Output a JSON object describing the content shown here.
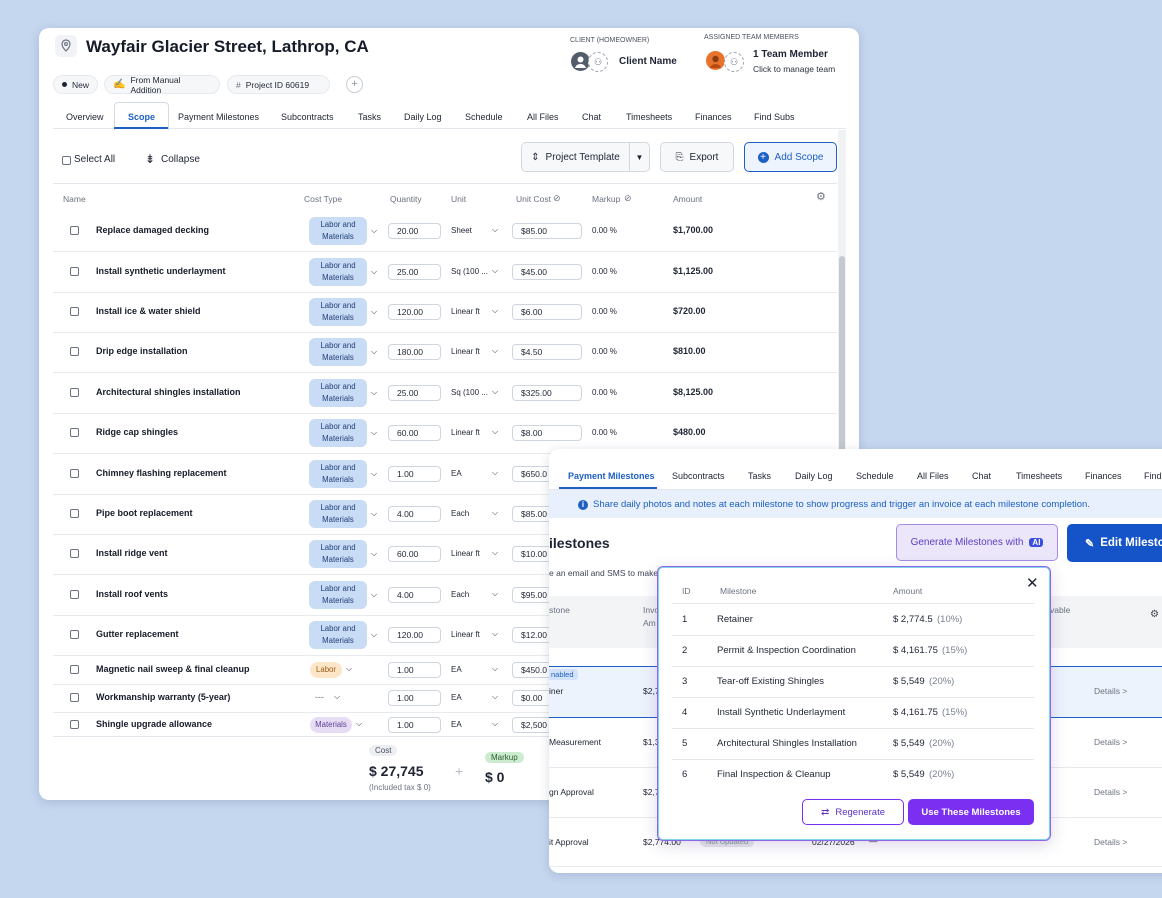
{
  "project": {
    "title": "Wayfair Glacier Street, Lathrop, CA",
    "status": "New",
    "source": "From Manual Addition",
    "project_id": "Project ID 60619",
    "client_label": "CLIENT (HOMEOWNER)",
    "client_name": "Client Name",
    "team_label": "ASSIGNED TEAM MEMBERS",
    "team_count": "1 Team Member",
    "team_hint": "Click to manage team"
  },
  "tabs": [
    "Overview",
    "Scope",
    "Payment Milestones",
    "Subcontracts",
    "Tasks",
    "Daily Log",
    "Schedule",
    "All Files",
    "Chat",
    "Timesheets",
    "Finances",
    "Find Subs"
  ],
  "toolbar": {
    "select_all": "Select All",
    "collapse": "Collapse",
    "template": "Project Template",
    "export": "Export",
    "add_scope": "Add Scope"
  },
  "columns": [
    "Name",
    "Cost Type",
    "Quantity",
    "Unit",
    "Unit Cost",
    "Markup",
    "Amount"
  ],
  "scope_items": [
    {
      "name": "Replace damaged decking",
      "cost_type": "Labor and Materials",
      "qty": "20.00",
      "unit": "Sheet",
      "unit_cost": "$85.00",
      "markup": "0.00 %",
      "amount": "$1,700.00"
    },
    {
      "name": "Install synthetic underlayment",
      "cost_type": "Labor and Materials",
      "qty": "25.00",
      "unit": "Sq (100 ...",
      "unit_cost": "$45.00",
      "markup": "0.00 %",
      "amount": "$1,125.00"
    },
    {
      "name": "Install ice & water shield",
      "cost_type": "Labor and Materials",
      "qty": "120.00",
      "unit": "Linear ft",
      "unit_cost": "$6.00",
      "markup": "0.00 %",
      "amount": "$720.00"
    },
    {
      "name": "Drip edge installation",
      "cost_type": "Labor and Materials",
      "qty": "180.00",
      "unit": "Linear ft",
      "unit_cost": "$4.50",
      "markup": "0.00 %",
      "amount": "$810.00"
    },
    {
      "name": "Architectural shingles installation",
      "cost_type": "Labor and Materials",
      "qty": "25.00",
      "unit": "Sq (100 ...",
      "unit_cost": "$325.00",
      "markup": "0.00 %",
      "amount": "$8,125.00"
    },
    {
      "name": "Ridge cap shingles",
      "cost_type": "Labor and Materials",
      "qty": "60.00",
      "unit": "Linear ft",
      "unit_cost": "$8.00",
      "markup": "0.00 %",
      "amount": "$480.00"
    },
    {
      "name": "Chimney flashing replacement",
      "cost_type": "Labor and Materials",
      "qty": "1.00",
      "unit": "EA",
      "unit_cost": "$650.0",
      "markup": "",
      "amount": ""
    },
    {
      "name": "Pipe boot replacement",
      "cost_type": "Labor and Materials",
      "qty": "4.00",
      "unit": "Each",
      "unit_cost": "$85.00",
      "markup": "",
      "amount": ""
    },
    {
      "name": "Install ridge vent",
      "cost_type": "Labor and Materials",
      "qty": "60.00",
      "unit": "Linear ft",
      "unit_cost": "$10.00",
      "markup": "",
      "amount": ""
    },
    {
      "name": "Install roof vents",
      "cost_type": "Labor and Materials",
      "qty": "4.00",
      "unit": "Each",
      "unit_cost": "$95.00",
      "markup": "",
      "amount": ""
    },
    {
      "name": "Gutter replacement",
      "cost_type": "Labor and Materials",
      "qty": "120.00",
      "unit": "Linear ft",
      "unit_cost": "$12.00",
      "markup": "",
      "amount": ""
    },
    {
      "name": "Magnetic nail sweep & final cleanup",
      "cost_type": "Labor",
      "qty": "1.00",
      "unit": "EA",
      "unit_cost": "$450.0",
      "markup": "",
      "amount": ""
    },
    {
      "name": "Workmanship warranty (5-year)",
      "cost_type": "---",
      "qty": "1.00",
      "unit": "EA",
      "unit_cost": "$0.00",
      "markup": "",
      "amount": ""
    },
    {
      "name": "Shingle upgrade allowance",
      "cost_type": "Materials",
      "qty": "1.00",
      "unit": "EA",
      "unit_cost": "$2,500",
      "markup": "",
      "amount": ""
    }
  ],
  "summary": {
    "cost_label": "Cost",
    "cost_value": "$ 27,745",
    "cost_note": "(Included tax $ 0)",
    "markup_label": "Markup",
    "markup_value": "$ 0",
    "plus": "+"
  },
  "milestones_panel": {
    "tabs": [
      "Payment Milestones",
      "Subcontracts",
      "Tasks",
      "Daily Log",
      "Schedule",
      "All Files",
      "Chat",
      "Timesheets",
      "Finances",
      "Find"
    ],
    "info": "Share daily photos and notes at each milestone to show progress and trigger an invoice at each milestone completion.",
    "heading": "ilestones",
    "sub": "e an email and SMS to make",
    "generate_label": "Generate Milestones with",
    "ai_tag": "AI",
    "edit_label": "Edit Milesto",
    "col_stone": "stone",
    "col_inv_1": "Invo",
    "col_inv_2": "Am",
    "col_able": "vable",
    "enabled_tag": "nabled",
    "rows": [
      {
        "name": "iner",
        "amount": "$2,7",
        "date": "",
        "details": "Details >"
      },
      {
        "name": "Measurement",
        "amount": "$1,3",
        "date": "",
        "details": "Details >"
      },
      {
        "name": "gn Approval",
        "amount": "$2,7",
        "date": "",
        "details": "Details >"
      },
      {
        "name": "it Approval",
        "amount": "$2,774.00",
        "status": "Not Updated",
        "date": "02/27/2026",
        "dash": "—",
        "details": "Details >"
      }
    ]
  },
  "ai_modal": {
    "col_id": "ID",
    "col_milestone": "Milestone",
    "col_amount": "Amount",
    "rows": [
      {
        "id": "1",
        "name": "Retainer",
        "amount": "$ 2,774.5",
        "pct": "(10%)"
      },
      {
        "id": "2",
        "name": "Permit & Inspection Coordination",
        "amount": "$ 4,161.75",
        "pct": "(15%)"
      },
      {
        "id": "3",
        "name": "Tear-off Existing Shingles",
        "amount": "$ 5,549",
        "pct": "(20%)"
      },
      {
        "id": "4",
        "name": "Install Synthetic Underlayment",
        "amount": "$ 4,161.75",
        "pct": "(15%)"
      },
      {
        "id": "5",
        "name": "Architectural Shingles Installation",
        "amount": "$ 5,549",
        "pct": "(20%)"
      },
      {
        "id": "6",
        "name": "Final Inspection & Cleanup",
        "amount": "$ 5,549",
        "pct": "(20%)"
      }
    ],
    "regenerate": "Regenerate",
    "use": "Use These Milestones"
  },
  "colors": {
    "accent": "#1e5fc4",
    "lm_badge": "#c9dcf5",
    "labor_badge": "#fde6c8",
    "materials_badge": "#e6ddf5",
    "purple": "#7b2ff0",
    "navy_button": "#1553c9"
  }
}
